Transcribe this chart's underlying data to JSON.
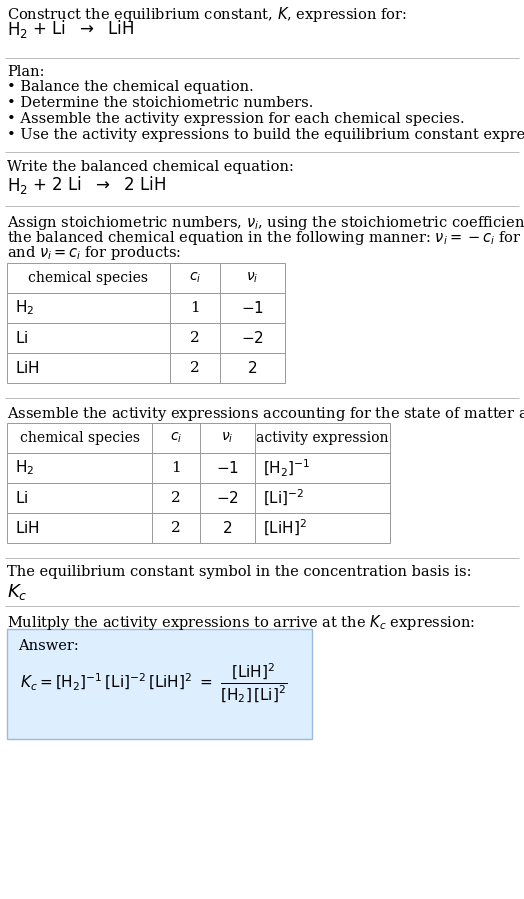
{
  "bg_color": "#ffffff",
  "text_color": "#000000",
  "table_border_color": "#999999",
  "sep_color": "#bbbbbb",
  "answer_bg": "#ddeeff",
  "answer_border": "#99bbdd",
  "font_serif": "DejaVu Serif",
  "sections": {
    "title_text": "Construct the equilibrium constant, K, expression for:",
    "plan_header": "Plan:",
    "plan_items": [
      "• Balance the chemical equation.",
      "• Determine the stoichiometric numbers.",
      "• Assemble the activity expression for each chemical species.",
      "• Use the activity expressions to build the equilibrium constant expression."
    ],
    "balanced_header": "Write the balanced chemical equation:",
    "stoich_para": [
      "Assign stoichiometric numbers, $\\nu_i$, using the stoichiometric coefficients, $c_i$, from",
      "the balanced chemical equation in the following manner: $\\nu_i = -c_i$ for reactants",
      "and $\\nu_i = c_i$ for products:"
    ],
    "table1_cols": [
      "chemical species",
      "$c_i$",
      "$\\nu_i$"
    ],
    "table1_data": [
      [
        "$\\mathrm{H_2}$",
        "1",
        "$-$1"
      ],
      [
        "$\\mathrm{Li}$",
        "2",
        "$-$2"
      ],
      [
        "$\\mathrm{LiH}$",
        "2",
        "2"
      ]
    ],
    "activity_para": "Assemble the activity expressions accounting for the state of matter and $\\nu_i$:",
    "table2_cols": [
      "chemical species",
      "$c_i$",
      "$\\nu_i$",
      "activity expression"
    ],
    "table2_data": [
      [
        "$\\mathrm{H_2}$",
        "1",
        "$-$1",
        "$[\\mathrm{H_2}]^{-1}$"
      ],
      [
        "$\\mathrm{Li}$",
        "2",
        "$-$2",
        "$[\\mathrm{Li}]^{-2}$"
      ],
      [
        "$\\mathrm{LiH}$",
        "2",
        "2",
        "$[\\mathrm{LiH}]^{2}$"
      ]
    ],
    "kc_text": "The equilibrium constant symbol in the concentration basis is:",
    "multiply_text": "Mulitply the activity expressions to arrive at the $K_c$ expression:"
  }
}
